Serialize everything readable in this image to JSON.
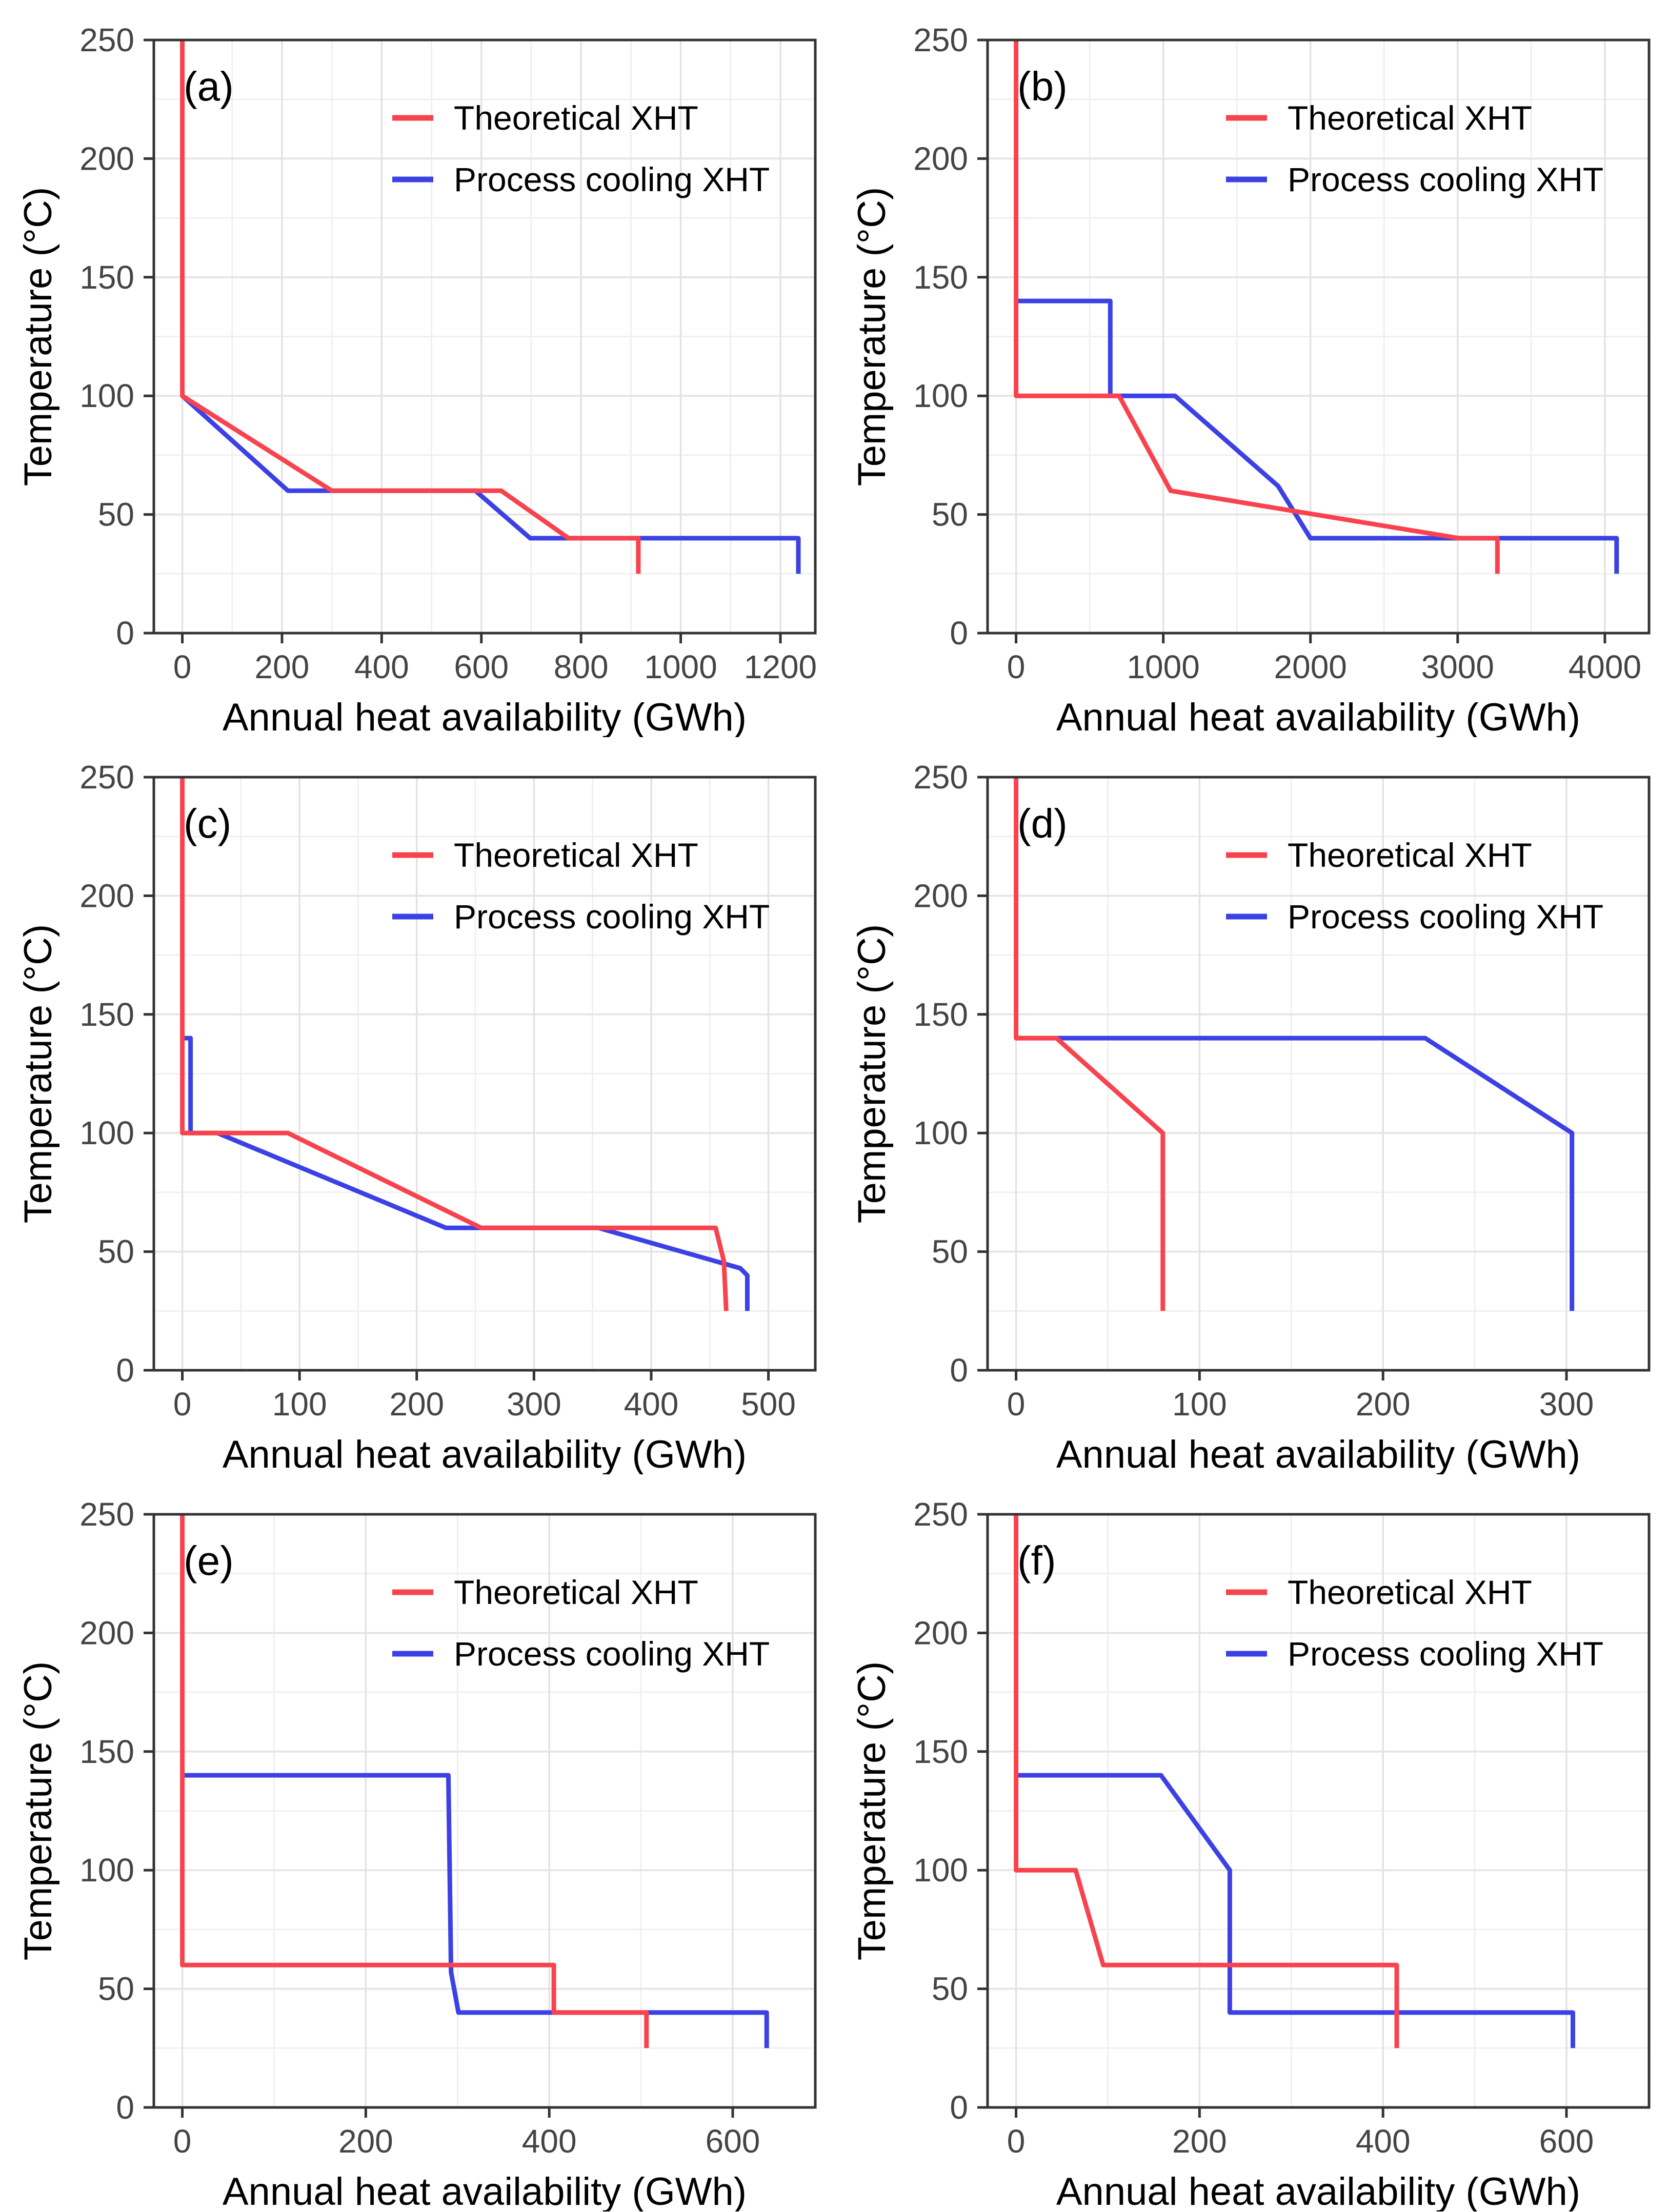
{
  "figure": {
    "description": "Six-panel figure of excess heat temperature curves",
    "xlabel": "Annual heat availability (GWh)",
    "ylabel": "Temperature (°C)"
  },
  "legend": {
    "theoretical_label": "Theoretical XHT",
    "process_label": "Process cooling XHT"
  },
  "colors": {
    "theoretical": "#F8434E",
    "process": "#3C41E5",
    "axis": "#333333",
    "tick_label": "#444444",
    "title_text": "#000000",
    "grid_major": "#E3E3E3",
    "grid_minor": "#F0F0F0",
    "background": "#FFFFFF"
  },
  "chart_data": [
    {
      "type": "line",
      "panel_label": "(a)",
      "xlabel": "Annual heat availability (GWh)",
      "ylabel": "Temperature (°C)",
      "x_ticks": [
        0,
        200,
        400,
        600,
        800,
        1000,
        1200
      ],
      "y_ticks": [
        0,
        50,
        100,
        150,
        200,
        250
      ],
      "xlim": [
        0,
        1270
      ],
      "ylim": [
        0,
        250
      ],
      "grid": true,
      "legend_position": "top-right",
      "series": [
        {
          "name": "Process cooling XHT",
          "color_key": "process",
          "points": [
            [
              0,
              100
            ],
            [
              212,
              60
            ],
            [
              588,
              60
            ],
            [
              698,
              40
            ],
            [
              1236,
              40
            ],
            [
              1236,
              25
            ]
          ]
        },
        {
          "name": "Theoretical XHT",
          "color_key": "theoretical",
          "points": [
            [
              0,
              250
            ],
            [
              0,
              100
            ],
            [
              300,
              60
            ],
            [
              640,
              60
            ],
            [
              775,
              40
            ],
            [
              915,
              40
            ],
            [
              915,
              25
            ]
          ]
        }
      ]
    },
    {
      "type": "line",
      "panel_label": "(b)",
      "xlabel": "Annual heat availability (GWh)",
      "ylabel": "Temperature (°C)",
      "x_ticks": [
        0,
        1000,
        2000,
        3000,
        4000
      ],
      "y_ticks": [
        0,
        50,
        100,
        150,
        200,
        250
      ],
      "xlim": [
        0,
        4300
      ],
      "ylim": [
        0,
        250
      ],
      "grid": true,
      "legend_position": "top-right",
      "series": [
        {
          "name": "Process cooling XHT",
          "color_key": "process",
          "points": [
            [
              0,
              140
            ],
            [
              640,
              140
            ],
            [
              640,
              100
            ],
            [
              1080,
              100
            ],
            [
              1780,
              62
            ],
            [
              2000,
              40
            ],
            [
              4080,
              40
            ],
            [
              4080,
              25
            ]
          ]
        },
        {
          "name": "Theoretical XHT",
          "color_key": "theoretical",
          "points": [
            [
              0,
              250
            ],
            [
              0,
              100
            ],
            [
              700,
              100
            ],
            [
              1050,
              60
            ],
            [
              3010,
              40
            ],
            [
              3270,
              40
            ],
            [
              3270,
              25
            ]
          ]
        }
      ]
    },
    {
      "type": "line",
      "panel_label": "(c)",
      "xlabel": "Annual heat availability (GWh)",
      "ylabel": "Temperature (°C)",
      "x_ticks": [
        0,
        100,
        200,
        300,
        400,
        500
      ],
      "y_ticks": [
        0,
        50,
        100,
        150,
        200,
        250
      ],
      "xlim": [
        0,
        540
      ],
      "ylim": [
        0,
        250
      ],
      "grid": true,
      "legend_position": "top-right",
      "series": [
        {
          "name": "Process cooling XHT",
          "color_key": "process",
          "points": [
            [
              0,
              140
            ],
            [
              7,
              140
            ],
            [
              7,
              100
            ],
            [
              30,
              100
            ],
            [
              225,
              60
            ],
            [
              355,
              60
            ],
            [
              476,
              43
            ],
            [
              482,
              40
            ],
            [
              482,
              25
            ]
          ]
        },
        {
          "name": "Theoretical XHT",
          "color_key": "theoretical",
          "points": [
            [
              0,
              250
            ],
            [
              0,
              100
            ],
            [
              90,
              100
            ],
            [
              255,
              60
            ],
            [
              455,
              60
            ],
            [
              462,
              46
            ],
            [
              464,
              25
            ]
          ]
        }
      ]
    },
    {
      "type": "line",
      "panel_label": "(d)",
      "xlabel": "Annual heat availability (GWh)",
      "ylabel": "Temperature (°C)",
      "x_ticks": [
        0,
        100,
        200,
        300
      ],
      "y_ticks": [
        0,
        50,
        100,
        150,
        200,
        250
      ],
      "xlim": [
        0,
        345
      ],
      "ylim": [
        0,
        250
      ],
      "grid": true,
      "legend_position": "top-right",
      "series": [
        {
          "name": "Process cooling XHT",
          "color_key": "process",
          "points": [
            [
              0,
              140
            ],
            [
              223,
              140
            ],
            [
              303,
              100
            ],
            [
              303,
              25
            ]
          ]
        },
        {
          "name": "Theoretical XHT",
          "color_key": "theoretical",
          "points": [
            [
              0,
              250
            ],
            [
              0,
              140
            ],
            [
              22,
              140
            ],
            [
              80,
              100
            ],
            [
              80,
              25
            ]
          ]
        }
      ]
    },
    {
      "type": "line",
      "panel_label": "(e)",
      "xlabel": "Annual heat availability (GWh)",
      "ylabel": "Temperature (°C)",
      "x_ticks": [
        0,
        200,
        400,
        600
      ],
      "y_ticks": [
        0,
        50,
        100,
        150,
        200,
        250
      ],
      "xlim": [
        0,
        690
      ],
      "ylim": [
        0,
        250
      ],
      "grid": true,
      "legend_position": "top-right",
      "series": [
        {
          "name": "Process cooling XHT",
          "color_key": "process",
          "points": [
            [
              0,
              140
            ],
            [
              290,
              140
            ],
            [
              293,
              57
            ],
            [
              301,
              40
            ],
            [
              637,
              40
            ],
            [
              637,
              25
            ]
          ]
        },
        {
          "name": "Theoretical XHT",
          "color_key": "theoretical",
          "points": [
            [
              0,
              250
            ],
            [
              0,
              60
            ],
            [
              405,
              60
            ],
            [
              405,
              40
            ],
            [
              506,
              40
            ],
            [
              506,
              25
            ]
          ]
        }
      ]
    },
    {
      "type": "line",
      "panel_label": "(f)",
      "xlabel": "Annual heat availability (GWh)",
      "ylabel": "Temperature (°C)",
      "x_ticks": [
        0,
        200,
        400,
        600
      ],
      "y_ticks": [
        0,
        50,
        100,
        150,
        200,
        250
      ],
      "xlim": [
        0,
        690
      ],
      "ylim": [
        0,
        250
      ],
      "grid": true,
      "legend_position": "top-right",
      "series": [
        {
          "name": "Process cooling XHT",
          "color_key": "process",
          "points": [
            [
              0,
              140
            ],
            [
              158,
              140
            ],
            [
              233,
              100
            ],
            [
              233,
              40
            ],
            [
              607,
              40
            ],
            [
              607,
              25
            ]
          ]
        },
        {
          "name": "Theoretical XHT",
          "color_key": "theoretical",
          "points": [
            [
              0,
              250
            ],
            [
              0,
              100
            ],
            [
              65,
              100
            ],
            [
              95,
              60
            ],
            [
              415,
              60
            ],
            [
              415,
              25
            ]
          ]
        }
      ]
    }
  ]
}
